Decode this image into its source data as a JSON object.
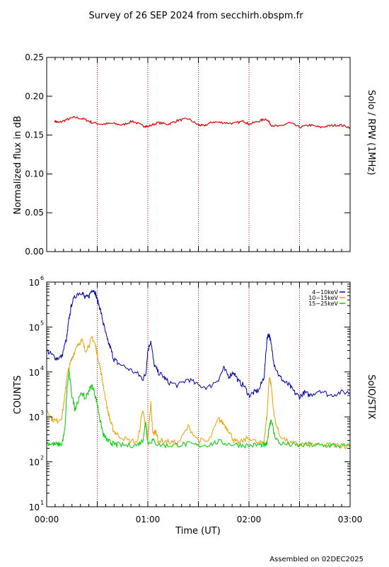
{
  "header": {
    "title": "Survey of 26 SEP 2024 from secchirh.obspm.fr"
  },
  "footer": {
    "assembled": "Assembled on 02DEC2025"
  },
  "colors": {
    "rpw": "#dd0000",
    "low": "#0000aa",
    "mid": "#e8a000",
    "high": "#00cc00",
    "divider": "#aa0000",
    "axis": "#000000"
  },
  "chart_data": [
    {
      "type": "line",
      "ylabel": "Normalized flux in dB",
      "side_label": "Solo / RPW (1MHz)",
      "yticks": [
        "0.00",
        "0.05",
        "0.10",
        "0.15",
        "0.20",
        "0.25"
      ],
      "ylim": [
        0,
        0.25
      ],
      "xlim": [
        0,
        3
      ],
      "divider_hours": [
        0.5,
        1.0,
        1.5,
        2.0,
        2.5
      ],
      "series": [
        {
          "color_key": "rpw",
          "x": [
            0.08,
            0.12,
            0.2,
            0.28,
            0.38,
            0.45,
            0.55,
            0.65,
            0.75,
            0.85,
            0.95,
            1.0,
            1.1,
            1.2,
            1.3,
            1.4,
            1.5,
            1.55,
            1.65,
            1.75,
            1.85,
            1.95,
            2.0,
            2.1,
            2.17,
            2.22,
            2.3,
            2.4,
            2.5,
            2.6,
            2.7,
            2.8,
            2.9,
            3.0
          ],
          "y": [
            0.168,
            0.166,
            0.17,
            0.173,
            0.17,
            0.166,
            0.164,
            0.165,
            0.163,
            0.168,
            0.162,
            0.161,
            0.166,
            0.164,
            0.169,
            0.171,
            0.163,
            0.162,
            0.167,
            0.166,
            0.165,
            0.168,
            0.164,
            0.168,
            0.171,
            0.163,
            0.161,
            0.166,
            0.16,
            0.163,
            0.16,
            0.162,
            0.163,
            0.16
          ]
        }
      ]
    },
    {
      "type": "line",
      "ylabel": "COUNTS",
      "side_label": "SolO/STIX",
      "xlabel": "Time (UT)",
      "xticks": [
        "00:00",
        "01:00",
        "02:00",
        "03:00"
      ],
      "xlim": [
        0,
        3
      ],
      "ylim": [
        10,
        1000000
      ],
      "yscale": "log",
      "yticks": [
        "10",
        "10",
        "10",
        "10",
        "10",
        "10"
      ],
      "ytick_exponents": [
        "1",
        "2",
        "3",
        "4",
        "5",
        "6"
      ],
      "divider_hours": [
        0.5,
        1.0,
        1.5,
        2.0,
        2.5
      ],
      "series": [
        {
          "name": "4−10keV",
          "color_key": "low",
          "x": [
            0,
            0.05,
            0.1,
            0.15,
            0.2,
            0.22,
            0.25,
            0.3,
            0.35,
            0.38,
            0.42,
            0.45,
            0.48,
            0.5,
            0.53,
            0.56,
            0.6,
            0.63,
            0.66,
            0.7,
            0.8,
            0.9,
            0.95,
            0.98,
            1.0,
            1.03,
            1.06,
            1.1,
            1.15,
            1.2,
            1.3,
            1.4,
            1.5,
            1.6,
            1.7,
            1.75,
            1.8,
            1.85,
            1.9,
            1.95,
            2.0,
            2.05,
            2.1,
            2.15,
            2.18,
            2.2,
            2.22,
            2.25,
            2.3,
            2.35,
            2.4,
            2.45,
            2.5,
            2.55,
            2.6,
            2.7,
            2.8,
            2.9,
            3.0
          ],
          "y": [
            30000,
            24000,
            20000,
            22000,
            60000,
            150000,
            350000,
            550000,
            600000,
            430000,
            500000,
            700000,
            600000,
            400000,
            250000,
            120000,
            50000,
            35000,
            20000,
            16000,
            12000,
            9000,
            7000,
            9000,
            30000,
            50000,
            15000,
            10000,
            8000,
            6000,
            5000,
            7000,
            5000,
            4500,
            7000,
            12000,
            8000,
            10000,
            6000,
            5000,
            3000,
            3500,
            4000,
            8000,
            60000,
            70000,
            40000,
            15000,
            8000,
            6000,
            5000,
            3500,
            2800,
            3500,
            3000,
            4000,
            3000,
            3500,
            3500
          ]
        },
        {
          "name": "10−15keV",
          "color_key": "mid",
          "x": [
            0,
            0.05,
            0.1,
            0.15,
            0.18,
            0.2,
            0.22,
            0.25,
            0.3,
            0.35,
            0.38,
            0.42,
            0.45,
            0.48,
            0.5,
            0.53,
            0.56,
            0.6,
            0.63,
            0.66,
            0.7,
            0.8,
            0.9,
            0.95,
            0.98,
            1.0,
            1.03,
            1.05,
            1.08,
            1.1,
            1.2,
            1.3,
            1.4,
            1.5,
            1.6,
            1.7,
            1.75,
            1.8,
            1.85,
            1.9,
            2.0,
            2.1,
            2.15,
            2.18,
            2.2,
            2.22,
            2.25,
            2.3,
            2.4,
            2.5,
            2.6,
            2.7,
            2.8,
            2.9,
            3.0
          ],
          "y": [
            1500,
            900,
            800,
            1000,
            3000,
            8000,
            12000,
            20000,
            40000,
            50000,
            30000,
            40000,
            60000,
            40000,
            25000,
            12000,
            5000,
            1500,
            800,
            500,
            400,
            300,
            280,
            1500,
            600,
            300,
            2000,
            400,
            500,
            300,
            280,
            260,
            600,
            300,
            280,
            900,
            700,
            500,
            300,
            260,
            350,
            250,
            300,
            1200,
            8000,
            5000,
            1000,
            400,
            260,
            250,
            240,
            230,
            240,
            230,
            220
          ]
        },
        {
          "name": "15−25keV",
          "color_key": "high",
          "x": [
            0,
            0.05,
            0.1,
            0.15,
            0.18,
            0.2,
            0.22,
            0.25,
            0.28,
            0.3,
            0.35,
            0.38,
            0.42,
            0.45,
            0.48,
            0.5,
            0.53,
            0.56,
            0.6,
            0.63,
            0.66,
            0.7,
            0.8,
            0.9,
            0.95,
            0.98,
            1.0,
            1.05,
            1.1,
            1.2,
            1.3,
            1.4,
            1.5,
            1.6,
            1.7,
            1.8,
            1.9,
            2.0,
            2.1,
            2.15,
            2.18,
            2.2,
            2.22,
            2.25,
            2.3,
            2.4,
            2.5,
            2.6,
            2.7,
            2.8,
            2.9,
            3.0
          ],
          "y": [
            260,
            250,
            240,
            250,
            500,
            4000,
            10000,
            3000,
            1500,
            2000,
            3500,
            2500,
            4000,
            5000,
            3000,
            2000,
            800,
            400,
            300,
            270,
            250,
            240,
            230,
            240,
            300,
            800,
            260,
            300,
            240,
            230,
            240,
            250,
            230,
            240,
            280,
            250,
            240,
            230,
            240,
            230,
            250,
            600,
            900,
            400,
            260,
            240,
            230,
            240,
            230,
            230,
            230,
            220
          ]
        }
      ]
    }
  ]
}
